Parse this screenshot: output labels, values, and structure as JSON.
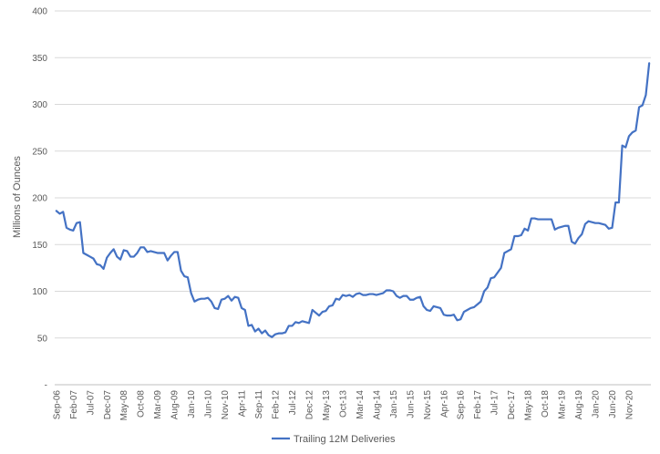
{
  "chart_data": {
    "type": "line",
    "title": "",
    "xlabel": "",
    "ylabel": "Millions of Ounces",
    "ylim": [
      0,
      400
    ],
    "y_ticks": [
      {
        "value": 0,
        "label": "-"
      },
      {
        "value": 50,
        "label": "50"
      },
      {
        "value": 100,
        "label": "100"
      },
      {
        "value": 150,
        "label": "150"
      },
      {
        "value": 200,
        "label": "200"
      },
      {
        "value": 250,
        "label": "250"
      },
      {
        "value": 300,
        "label": "300"
      },
      {
        "value": 350,
        "label": "350"
      },
      {
        "value": 400,
        "label": "400"
      }
    ],
    "x_tick_labels": [
      "Sep-06",
      "Feb-07",
      "Jul-07",
      "Dec-07",
      "May-08",
      "Oct-08",
      "Mar-09",
      "Aug-09",
      "Jan-10",
      "Jun-10",
      "Nov-10",
      "Apr-11",
      "Sep-11",
      "Feb-12",
      "Jul-12",
      "Dec-12",
      "May-13",
      "Oct-13",
      "Mar-14",
      "Aug-14",
      "Jan-15",
      "Jun-15",
      "Nov-15",
      "Apr-16",
      "Sep-16",
      "Feb-17",
      "Jul-17",
      "Dec-17",
      "May-18",
      "Oct-18",
      "Mar-19",
      "Aug-19",
      "Jan-20",
      "Jun-20",
      "Nov-20"
    ],
    "grid": {
      "horizontal": true,
      "vertical": false
    },
    "legend_position": "bottom",
    "colors": {
      "series": "#4472C4",
      "grid": "#d9d9d9",
      "text": "#595959"
    },
    "series": [
      {
        "name": "Trailing 12M Deliveries",
        "x_start": "Sep-06",
        "frequency": "monthly",
        "values": [
          186,
          183,
          185,
          168,
          166,
          165,
          173,
          174,
          141,
          139,
          137,
          135,
          129,
          128,
          124,
          136,
          141,
          145,
          137,
          134,
          144,
          143,
          137,
          137,
          141,
          147,
          147,
          142,
          143,
          142,
          141,
          141,
          141,
          133,
          138,
          142,
          142,
          122,
          116,
          115,
          98,
          89,
          91,
          92,
          92,
          93,
          89,
          82,
          81,
          91,
          92,
          95,
          90,
          94,
          93,
          82,
          80,
          63,
          64,
          57,
          60,
          55,
          58,
          53,
          51,
          54,
          55,
          55,
          56,
          63,
          63,
          67,
          66,
          68,
          67,
          66,
          80,
          77,
          74,
          78,
          79,
          84,
          85,
          92,
          91,
          96,
          95,
          96,
          94,
          97,
          98,
          96,
          96,
          97,
          97,
          96,
          97,
          98,
          101,
          101,
          100,
          95,
          93,
          95,
          95,
          91,
          91,
          93,
          94,
          84,
          80,
          79,
          84,
          83,
          82,
          75,
          74,
          74,
          75,
          69,
          70,
          78,
          80,
          82,
          83,
          86,
          89,
          100,
          104,
          114,
          115,
          120,
          125,
          141,
          143,
          145,
          159,
          159,
          160,
          167,
          165,
          178,
          178,
          177,
          177,
          177,
          177,
          177,
          166,
          168,
          169,
          170,
          170,
          153,
          151,
          157,
          161,
          172,
          175,
          174,
          173,
          173,
          172,
          171,
          167,
          168,
          195,
          195,
          256,
          254,
          266,
          270,
          272,
          297,
          299,
          310,
          344
        ]
      }
    ]
  }
}
